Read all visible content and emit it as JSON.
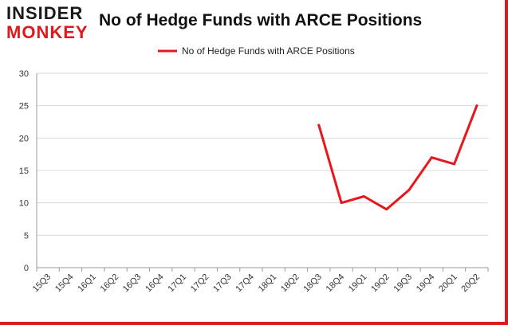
{
  "brand": {
    "line1": "INSIDER",
    "line2": "MONKEY"
  },
  "chart_data": {
    "type": "line",
    "title": "No of Hedge Funds with ARCE Positions",
    "xlabel": "",
    "ylabel": "",
    "categories": [
      "15Q3",
      "15Q4",
      "16Q1",
      "16Q2",
      "16Q3",
      "16Q4",
      "17Q1",
      "17Q2",
      "17Q3",
      "17Q4",
      "18Q1",
      "18Q2",
      "18Q3",
      "18Q4",
      "19Q1",
      "19Q2",
      "19Q3",
      "19Q4",
      "20Q1",
      "20Q2"
    ],
    "series": [
      {
        "name": "No of Hedge Funds with ARCE Positions",
        "color": "#e8171c",
        "values": [
          null,
          null,
          null,
          null,
          null,
          null,
          null,
          null,
          null,
          null,
          null,
          null,
          22,
          10,
          11,
          9,
          12,
          17,
          16,
          25
        ]
      }
    ],
    "ylim": [
      0,
      30
    ],
    "yticks": [
      0,
      5,
      10,
      15,
      20,
      25,
      30
    ],
    "grid": true,
    "legend": "top-center"
  }
}
